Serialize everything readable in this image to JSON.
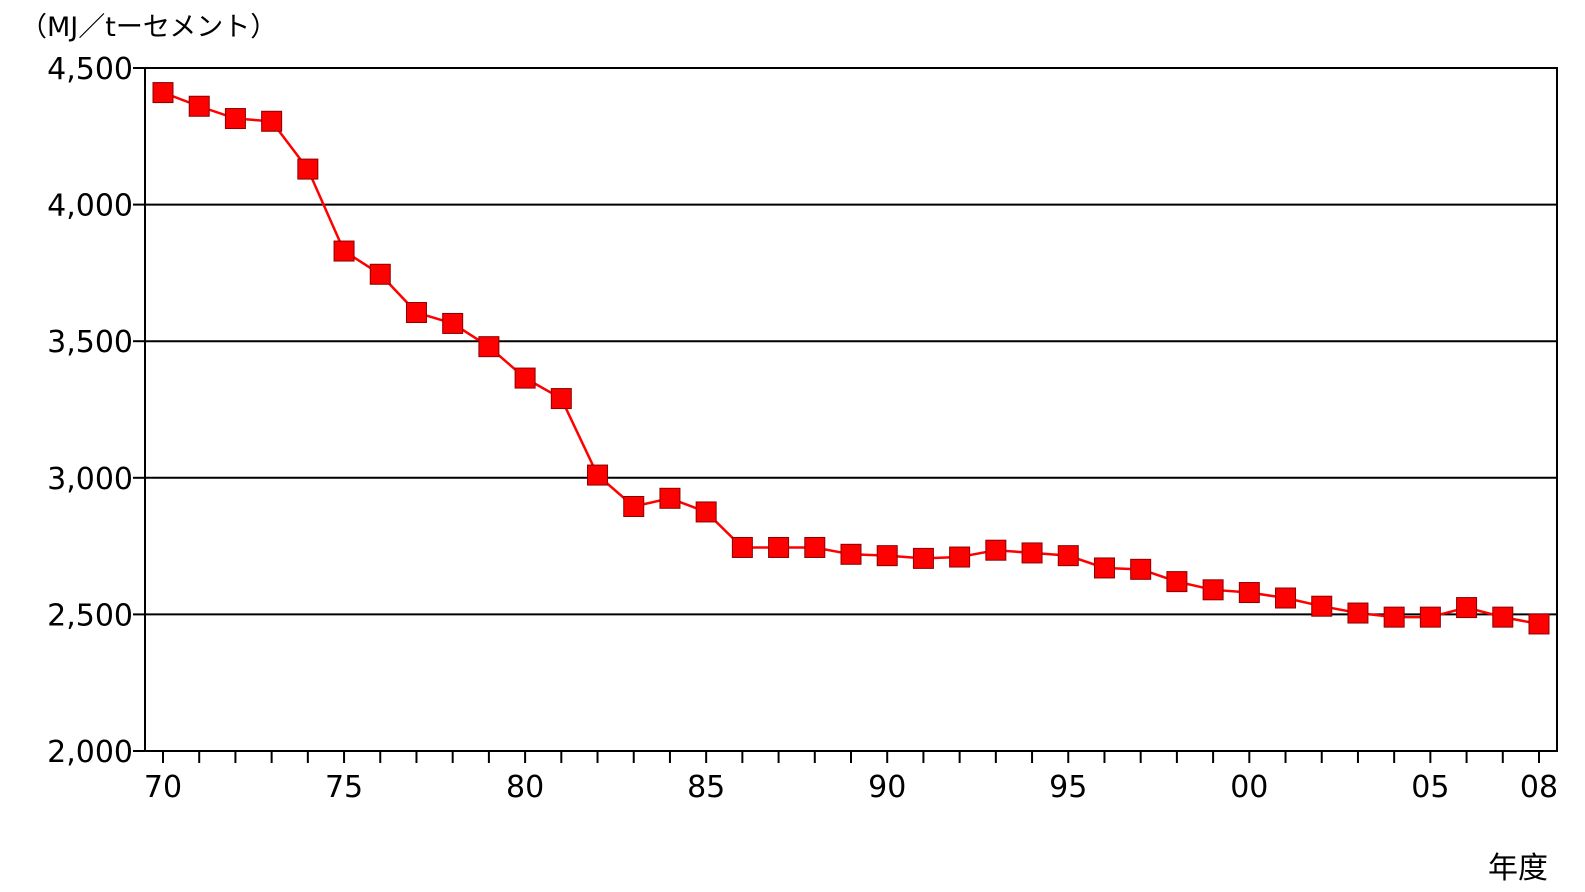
{
  "chart_data": {
    "type": "line",
    "ylabel": "（MJ／tーセメント）",
    "xlabel": "年度",
    "ylim": [
      2000,
      4500
    ],
    "yticks": [
      2000,
      2500,
      3000,
      3500,
      4000,
      4500
    ],
    "ytick_labels": [
      "2,000",
      "2,500",
      "3,000",
      "3,500",
      "4,000",
      "4,500"
    ],
    "xlim": [
      1970,
      2008
    ],
    "xtick_years": [
      1970,
      1975,
      1980,
      1985,
      1990,
      1995,
      2000,
      2005,
      2008
    ],
    "xtick_labels": [
      "70",
      "75",
      "80",
      "85",
      "90",
      "95",
      "00",
      "05",
      "08"
    ],
    "grid": true,
    "series": [
      {
        "color": "#ff0000",
        "marker": "square",
        "x": [
          1970,
          1971,
          1972,
          1973,
          1974,
          1975,
          1976,
          1977,
          1978,
          1979,
          1980,
          1981,
          1982,
          1983,
          1984,
          1985,
          1986,
          1987,
          1988,
          1989,
          1990,
          1991,
          1992,
          1993,
          1994,
          1995,
          1996,
          1997,
          1998,
          1999,
          2000,
          2001,
          2002,
          2003,
          2004,
          2005,
          2006,
          2007,
          2008
        ],
        "y": [
          4410,
          4360,
          4315,
          4305,
          4130,
          3830,
          3745,
          3605,
          3565,
          3480,
          3365,
          3290,
          3010,
          2895,
          2925,
          2875,
          2745,
          2745,
          2745,
          2720,
          2715,
          2705,
          2710,
          2735,
          2725,
          2715,
          2670,
          2665,
          2620,
          2590,
          2580,
          2560,
          2530,
          2505,
          2490,
          2490,
          2525,
          2490,
          2465
        ]
      }
    ]
  }
}
